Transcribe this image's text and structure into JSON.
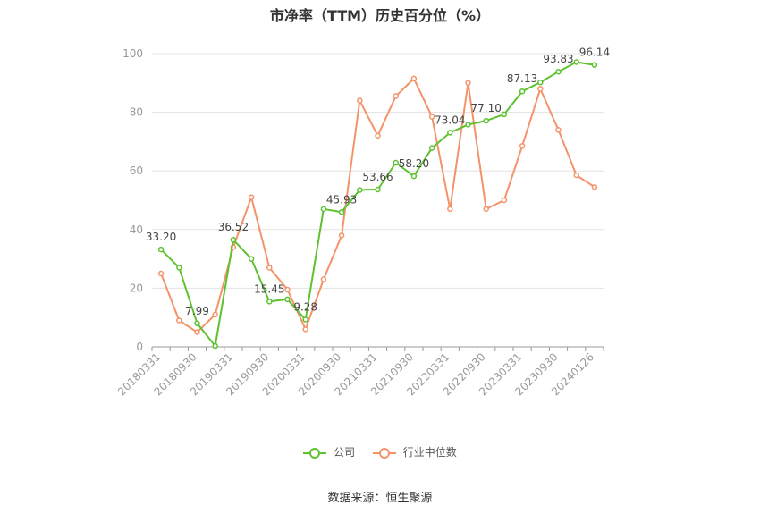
{
  "title": "市净率（TTM）历史百分位（%）",
  "source": "数据来源：恒生聚源",
  "colors": {
    "company": "#5ec230",
    "industry": "#f4936a",
    "grid": "#e3e3e3",
    "axis": "#999999",
    "label": "#999999"
  },
  "legend": {
    "company": "公司",
    "industry": "行业中位数"
  },
  "chart_data": {
    "type": "line",
    "title": "市净率（TTM）历史百分位（%）",
    "xlabel": "",
    "ylabel": "",
    "ylim": [
      0,
      100
    ],
    "yticks": [
      0,
      20,
      40,
      60,
      80,
      100
    ],
    "grid": true,
    "legend_position": "bottom",
    "x": [
      "20180331",
      "20180630",
      "20180930",
      "20181231",
      "20190331",
      "20190630",
      "20190930",
      "20191231",
      "20200331",
      "20200630",
      "20200930",
      "20201231",
      "20210331",
      "20210630",
      "20210930",
      "20211231",
      "20220331",
      "20220630",
      "20220930",
      "20221231",
      "20230331",
      "20230630",
      "20230930",
      "20231231",
      "20240126"
    ],
    "xtick_labels": [
      "20180331",
      "20180930",
      "20190331",
      "20190930",
      "20200331",
      "20200930",
      "20210331",
      "20210930",
      "20220331",
      "20220930",
      "20230331",
      "20230930",
      "20240126"
    ],
    "series": [
      {
        "name": "公司",
        "values": [
          33.2,
          27.0,
          7.99,
          0.3,
          36.52,
          30.0,
          15.45,
          16.2,
          9.28,
          47.0,
          45.93,
          53.5,
          53.66,
          62.8,
          58.2,
          67.8,
          73.04,
          75.8,
          77.1,
          79.3,
          87.13,
          90.2,
          93.83,
          97.1,
          96.14
        ],
        "labels": [
          "33.20",
          null,
          "7.99",
          null,
          "36.52",
          null,
          "15.45",
          null,
          "9.28",
          null,
          "45.93",
          null,
          "53.66",
          null,
          "58.20",
          null,
          "73.04",
          null,
          "77.10",
          null,
          "87.13",
          null,
          "93.83",
          null,
          "96.14"
        ]
      },
      {
        "name": "行业中位数",
        "values": [
          25.0,
          9.0,
          5.0,
          11.0,
          34.0,
          51.0,
          27.0,
          19.5,
          6.0,
          23.0,
          38.0,
          84.0,
          72.0,
          85.5,
          91.5,
          78.5,
          47.0,
          90.0,
          47.0,
          50.0,
          68.5,
          88.0,
          74.0,
          58.5,
          54.5
        ]
      }
    ]
  }
}
